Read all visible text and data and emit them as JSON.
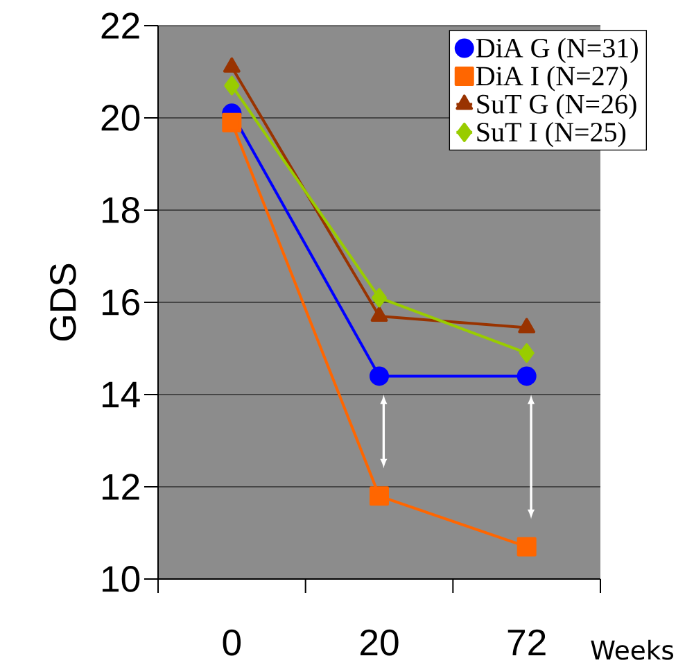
{
  "chart_data": {
    "type": "line",
    "ylabel": "GDS",
    "xlabel": "Weeks",
    "categories": [
      "0",
      "20",
      "72"
    ],
    "ylim": [
      10,
      22
    ],
    "yticks": [
      10,
      12,
      14,
      16,
      18,
      20,
      22
    ],
    "grid": "y",
    "legend": "top right",
    "series": [
      {
        "name": "DiA G (N=31)",
        "color": "#0000ff",
        "marker": "circle",
        "values": [
          20.1,
          14.4,
          14.4
        ]
      },
      {
        "name": "DiA I (N=27)",
        "color": "#ff6600",
        "marker": "square",
        "values": [
          19.9,
          11.8,
          10.7
        ]
      },
      {
        "name": "SuT G (N=26)",
        "color": "#993300",
        "marker": "triangle",
        "values": [
          21.1,
          15.7,
          15.45
        ]
      },
      {
        "name": "SuT I (N=25)",
        "color": "#99cc00",
        "marker": "diamond",
        "values": [
          20.7,
          16.1,
          14.9
        ]
      }
    ]
  }
}
